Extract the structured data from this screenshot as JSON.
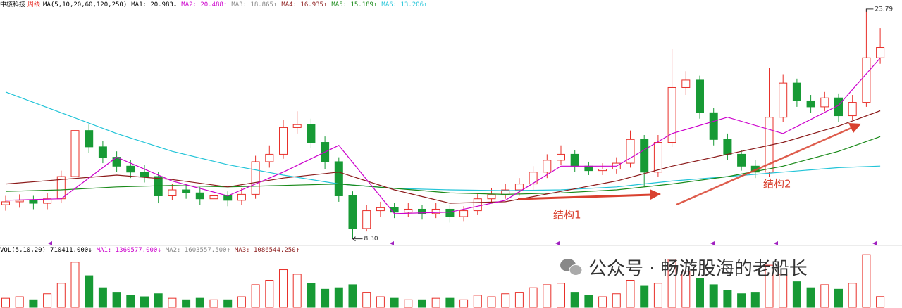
{
  "chart_data": {
    "type": "candlestick",
    "header": {
      "name": "中核科技",
      "period": "周线",
      "params": "MA(5,10,20,60,120,250)",
      "items": [
        {
          "text": "MA1: 20.983↓",
          "color": "#000000"
        },
        {
          "text": "MA2: 20.488↑",
          "color": "#cc00cc"
        },
        {
          "text": "MA3: 18.865↑",
          "color": "#888888"
        },
        {
          "text": "MA4: 16.935↑",
          "color": "#8b1a1a"
        },
        {
          "text": "MA5: 15.189↑",
          "color": "#1a8a1a"
        },
        {
          "text": "MA6: 13.206↑",
          "color": "#22c4d8"
        }
      ]
    },
    "volume_header": {
      "params": "VOL(5,10,20)",
      "items": [
        {
          "text": "710411.000↓",
          "color": "#000000"
        },
        {
          "text": "MA1: 1360577.000↓",
          "color": "#cc00cc"
        },
        {
          "text": "MA2: 1603557.500↑",
          "color": "#888888"
        },
        {
          "text": "MA3: 1086544.250↑",
          "color": "#8b1a1a"
        }
      ]
    },
    "ylim": [
      8.0,
      24.4
    ],
    "vylim": [
      0,
      3600000
    ],
    "up_color": "#e8302a",
    "down_color": "#179a35",
    "candles": {
      "open": [
        10.6,
        10.8,
        10.9,
        10.7,
        11.0,
        12.5,
        15.6,
        14.5,
        13.8,
        13.2,
        12.8,
        12.5,
        11.2,
        11.6,
        11.4,
        11.0,
        11.2,
        10.9,
        11.3,
        13.5,
        14.0,
        15.8,
        16.0,
        14.8,
        13.5,
        11.2,
        9.0,
        10.2,
        10.4,
        10.1,
        10.3,
        10.0,
        10.3,
        9.8,
        10.2,
        11.0,
        11.3,
        11.6,
        12.0,
        12.8,
        13.6,
        14.0,
        13.2,
        12.9,
        13.0,
        13.4,
        15.0,
        12.8,
        14.8,
        18.5,
        19.0,
        16.8,
        15.0,
        14.0,
        13.2,
        12.8,
        16.5,
        18.8,
        17.6,
        17.2,
        17.8,
        16.6,
        17.5,
        20.5
      ],
      "high": [
        11.2,
        11.3,
        11.2,
        11.4,
        12.9,
        17.5,
        16.0,
        14.9,
        14.2,
        13.6,
        13.3,
        12.8,
        12.0,
        12.0,
        11.8,
        11.6,
        11.5,
        11.7,
        13.9,
        14.6,
        16.3,
        16.9,
        16.4,
        15.2,
        13.8,
        11.5,
        10.6,
        10.8,
        10.7,
        10.7,
        10.6,
        10.7,
        10.6,
        10.5,
        11.4,
        11.7,
        12.0,
        12.4,
        13.2,
        14.0,
        14.6,
        14.3,
        13.5,
        13.4,
        13.8,
        15.6,
        15.3,
        15.3,
        21.1,
        19.6,
        19.3,
        17.1,
        15.4,
        14.3,
        13.6,
        19.8,
        19.4,
        19.1,
        18.0,
        18.2,
        18.1,
        18.0,
        23.79,
        22.5
      ],
      "low": [
        10.2,
        10.4,
        10.3,
        10.3,
        10.7,
        12.2,
        14.1,
        13.4,
        12.8,
        12.4,
        12.1,
        10.7,
        10.9,
        11.0,
        10.6,
        10.6,
        10.5,
        10.6,
        11.0,
        13.1,
        13.7,
        15.4,
        14.4,
        13.0,
        10.8,
        8.3,
        8.8,
        9.8,
        9.7,
        9.8,
        9.6,
        9.7,
        9.4,
        9.5,
        9.9,
        10.7,
        11.0,
        11.2,
        11.6,
        12.4,
        13.3,
        12.8,
        12.6,
        12.6,
        12.7,
        13.1,
        11.8,
        12.5,
        14.5,
        18.0,
        16.4,
        14.6,
        13.6,
        12.9,
        12.4,
        12.5,
        16.2,
        17.2,
        16.8,
        16.9,
        16.2,
        16.3,
        17.2,
        20.1
      ],
      "close": [
        10.8,
        10.9,
        10.7,
        11.0,
        12.5,
        15.6,
        14.5,
        13.8,
        13.2,
        12.8,
        12.5,
        11.2,
        11.6,
        11.4,
        11.0,
        11.2,
        10.9,
        11.3,
        13.5,
        14.0,
        15.8,
        16.0,
        14.8,
        13.5,
        11.2,
        9.0,
        10.2,
        10.4,
        10.1,
        10.3,
        10.0,
        10.3,
        9.8,
        10.2,
        11.0,
        11.3,
        11.6,
        12.0,
        12.8,
        13.6,
        14.0,
        13.2,
        12.9,
        13.0,
        13.4,
        15.0,
        12.8,
        14.8,
        18.5,
        19.0,
        16.8,
        15.0,
        14.0,
        13.2,
        12.8,
        16.5,
        18.8,
        17.6,
        17.2,
        17.8,
        16.6,
        17.5,
        20.5,
        21.2
      ],
      "volume": [
        600000,
        700000,
        500000,
        900000,
        1600000,
        3000000,
        2100000,
        1300000,
        1000000,
        800000,
        700000,
        900000,
        600000,
        500000,
        600000,
        500000,
        500000,
        700000,
        1500000,
        1800000,
        2500000,
        2200000,
        1600000,
        1200000,
        1300000,
        1500000,
        1000000,
        700000,
        600000,
        500000,
        500000,
        600000,
        600000,
        500000,
        800000,
        700000,
        900000,
        1000000,
        1300000,
        1500000,
        1600000,
        1000000,
        800000,
        700000,
        900000,
        1800000,
        1400000,
        1600000,
        3200000,
        2400000,
        1900000,
        1500000,
        1100000,
        900000,
        1000000,
        2800000,
        2200000,
        1700000,
        1300000,
        1500000,
        1200000,
        1600000,
        3500000,
        710411
      ]
    },
    "ma_x": [
      0,
      4,
      8,
      12,
      16,
      20,
      24,
      28,
      32,
      36,
      40,
      44,
      48,
      52,
      56,
      60,
      63
    ],
    "ma_lines": [
      {
        "color": "#22c4d8",
        "values": [
          18.2,
          16.8,
          15.4,
          14.2,
          13.3,
          12.6,
          12.0,
          11.7,
          11.6,
          11.55,
          11.6,
          11.8,
          12.2,
          12.5,
          12.8,
          13.1,
          13.206
        ]
      },
      {
        "color": "#1a8a1a",
        "values": [
          11.5,
          11.6,
          11.8,
          11.9,
          11.8,
          11.9,
          12.0,
          11.7,
          11.4,
          11.3,
          11.4,
          11.6,
          12.0,
          12.5,
          13.2,
          14.2,
          15.189
        ]
      },
      {
        "color": "#8b1a1a",
        "values": [
          12.0,
          12.3,
          12.6,
          12.3,
          11.8,
          12.4,
          12.8,
          11.6,
          10.7,
          10.8,
          11.5,
          12.2,
          13.2,
          14.0,
          14.8,
          15.9,
          16.935
        ]
      },
      {
        "color": "#cc00cc",
        "values": [
          10.9,
          11.0,
          13.8,
          12.2,
          11.2,
          12.8,
          14.6,
          10.0,
          10.1,
          10.9,
          13.2,
          13.2,
          15.4,
          16.5,
          15.4,
          17.3,
          20.488
        ]
      }
    ],
    "annotations": {
      "high": "23.79",
      "low": "8.30",
      "structure1": "结构1",
      "structure2": "结构2"
    },
    "watermark": "公众号 · 畅游股海的老船长"
  }
}
